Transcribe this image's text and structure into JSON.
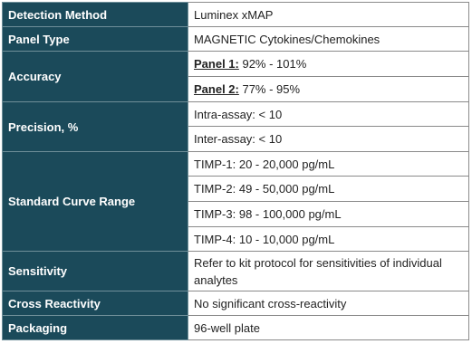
{
  "rows": {
    "detection_method": {
      "label": "Detection Method",
      "value": "Luminex xMAP"
    },
    "panel_type": {
      "label": "Panel Type",
      "value": "MAGNETIC Cytokines/Chemokines"
    },
    "accuracy": {
      "label": "Accuracy",
      "panel1": {
        "name": "Panel 1:",
        "value": " 92% - 101%"
      },
      "panel2": {
        "name": "Panel 2:",
        "value": " 77% - 95%"
      }
    },
    "precision": {
      "label": "Precision, %",
      "intra": "Intra-assay: < 10",
      "inter": "Inter-assay: < 10"
    },
    "standard_curve": {
      "label": "Standard Curve Range",
      "ranges": [
        "TIMP-1: 20 - 20,000 pg/mL",
        "TIMP-2: 49 - 50,000 pg/mL",
        "TIMP-3: 98 - 100,000 pg/mL",
        "TIMP-4: 10 - 10,000 pg/mL"
      ]
    },
    "sensitivity": {
      "label": "Sensitivity",
      "value": "Refer to kit protocol for sensitivities of individual analytes"
    },
    "cross_reactivity": {
      "label": "Cross Reactivity",
      "value": "No significant cross-reactivity"
    },
    "packaging": {
      "label": "Packaging",
      "value": "96-well plate"
    }
  }
}
